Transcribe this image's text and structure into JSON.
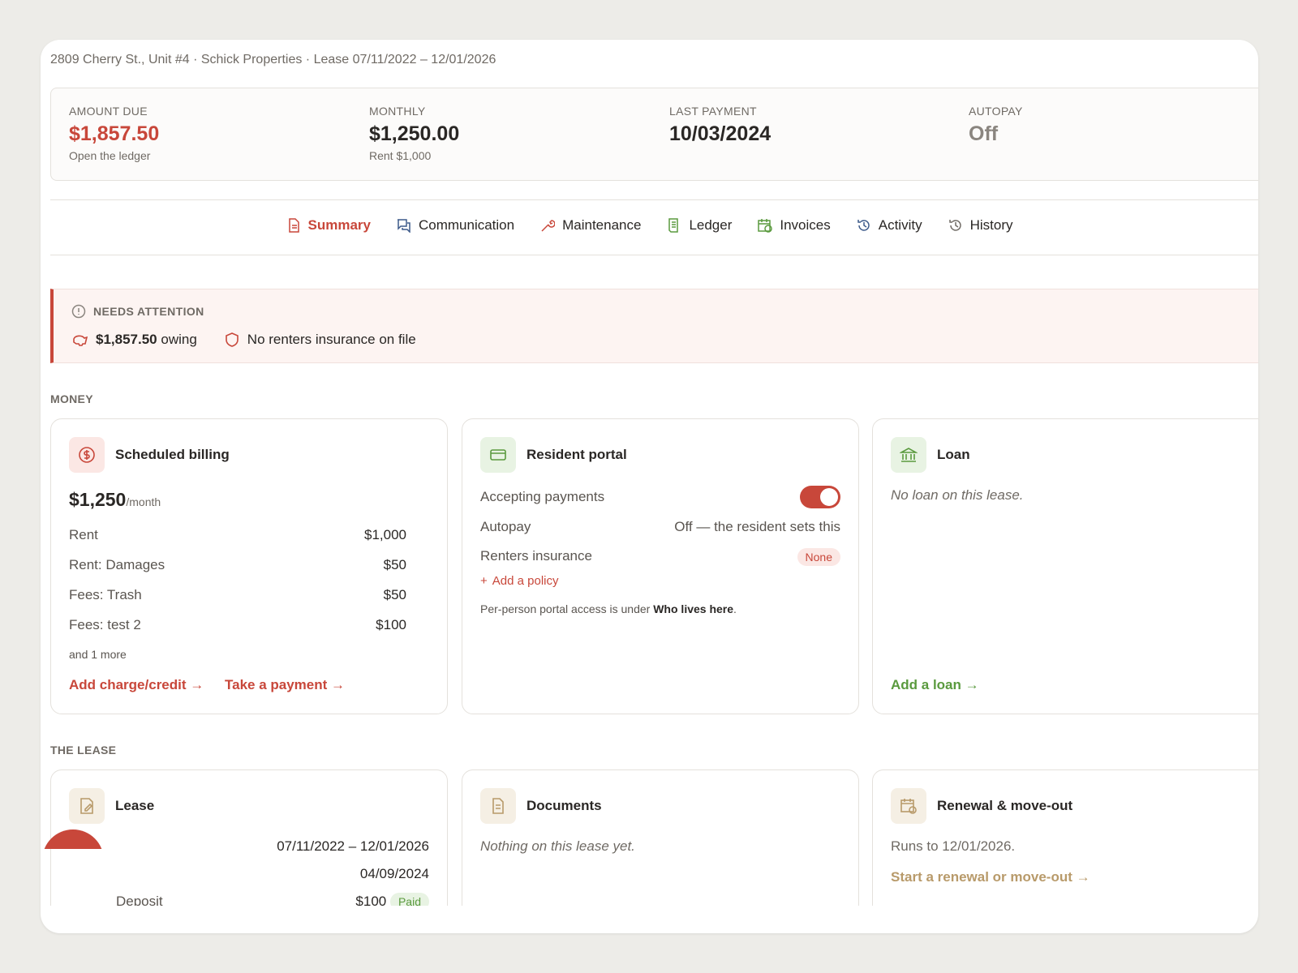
{
  "header": {
    "subtitle": "2809 Cherry St., Unit #4 · Schick Properties · Lease 07/11/2022 – 12/01/2026"
  },
  "stats": [
    {
      "label": "AMOUNT DUE",
      "value": "$1,857.50",
      "note": "Open the ledger"
    },
    {
      "label": "MONTHLY",
      "value": "$1,250.00",
      "note": "Rent $1,000"
    },
    {
      "label": "LAST PAYMENT",
      "value": "10/03/2024"
    },
    {
      "label": "AUTOPAY",
      "value": "Off"
    }
  ],
  "tabs": [
    "Summary",
    "Communication",
    "Maintenance",
    "Ledger",
    "Invoices",
    "Activity",
    "History"
  ],
  "attention": {
    "title": "NEEDS ATTENTION",
    "items": [
      {
        "strong": "$1,857.50",
        "text": "owing"
      },
      {
        "text": "No renters insurance on file"
      }
    ]
  },
  "money": {
    "title": "MONEY",
    "billing": {
      "title": "Scheduled billing",
      "amount": "$1,250",
      "unit": "/month",
      "rows": [
        [
          "Rent",
          "$1,000"
        ],
        [
          "Rent: Damages",
          "$50"
        ],
        [
          "Fees: Trash",
          "$50"
        ],
        [
          "Fees: test 2",
          "$100"
        ]
      ],
      "more": "and 1 more",
      "links": [
        "Add charge/credit →",
        "Take a payment →"
      ]
    },
    "portal": {
      "title": "Resident portal",
      "accepting_label": "Accepting payments",
      "accepting": true,
      "autopay_label": "Autopay",
      "autopay_value": "Off — the resident sets this",
      "insurance_label": "Renters insurance",
      "insurance_badge": "None",
      "add_policy": "Add a policy",
      "note": "Per-person portal access is under",
      "note_link": "Who lives here",
      "note_end": "."
    },
    "loan": {
      "title": "Loan",
      "empty": "No loan on this lease.",
      "link": "Add a loan →"
    }
  },
  "lease_section": {
    "title": "THE LEASE",
    "lease": {
      "title": "Lease",
      "rows": [
        {
          "value": "07/11/2022 – 12/01/2026"
        },
        {
          "value": "04/09/2024"
        },
        {
          "label": "Deposit",
          "value": "$100",
          "badge": "Paid"
        }
      ]
    },
    "documents": {
      "title": "Documents",
      "empty": "Nothing on this lease yet."
    },
    "renewal": {
      "title": "Renewal & move-out",
      "text": "Runs to 12/01/2026.",
      "link": "Start a renewal or move-out →"
    }
  }
}
